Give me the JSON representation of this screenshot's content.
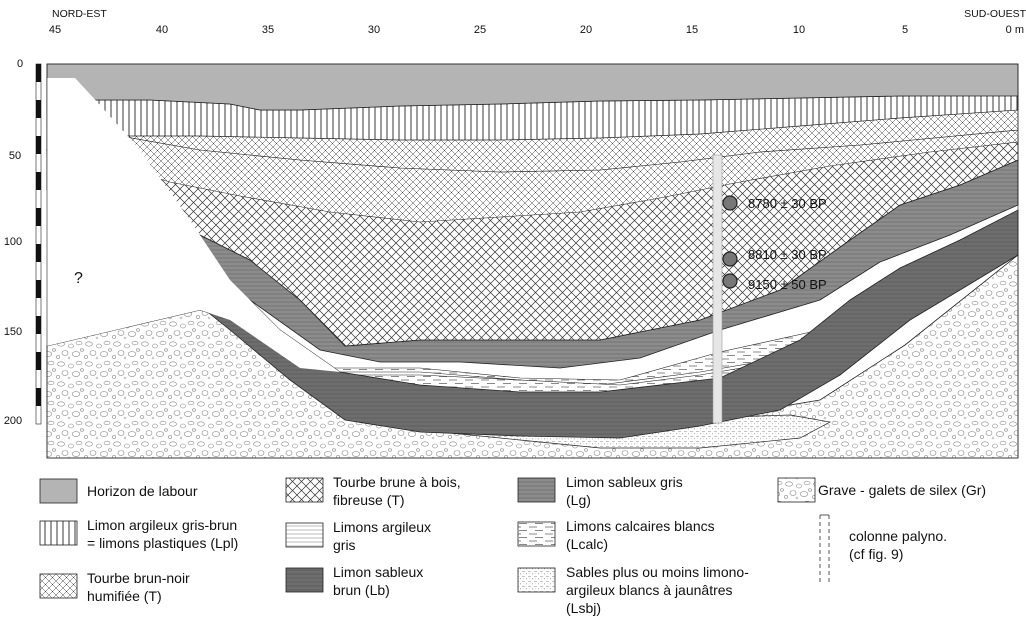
{
  "header": {
    "left_label": "NORD-EST",
    "right_label": "SUD-OUEST"
  },
  "x_axis": {
    "ticks": [
      "45",
      "40",
      "35",
      "30",
      "25",
      "20",
      "15",
      "10",
      "5",
      "0 m"
    ]
  },
  "y_axis": {
    "ticks": [
      "0",
      "50",
      "100",
      "150",
      "200"
    ]
  },
  "unknown_mark": "?",
  "dates": [
    {
      "label": "8780 ± 30 BP"
    },
    {
      "label": "8810 ± 30 BP"
    },
    {
      "label": "9150 ± 50 BP"
    }
  ],
  "legend": {
    "horizon": {
      "lines": [
        "Horizon de labour"
      ]
    },
    "lpl": {
      "lines": [
        "Limon argileux gris-brun",
        "= limons plastiques (Lpl)"
      ]
    },
    "tbn": {
      "lines": [
        "Tourbe brun-noir",
        "humifiée (T)"
      ]
    },
    "tbb": {
      "lines": [
        "Tourbe brune à bois,",
        "fibreuse (T)"
      ]
    },
    "lag": {
      "lines": [
        "Limons argileux",
        "gris"
      ]
    },
    "lb": {
      "lines": [
        "Limon sableux",
        "brun (Lb)"
      ]
    },
    "lg": {
      "lines": [
        "Limon sableux gris",
        "(Lg)"
      ]
    },
    "lcalc": {
      "lines": [
        "Limons calcaires blancs",
        "(Lcalc)"
      ]
    },
    "lsbj": {
      "lines": [
        "Sables plus ou moins limono-",
        "argileux blancs à jaunâtres",
        "(Lsbj)"
      ]
    },
    "gr": {
      "lines": [
        "Grave - galets de silex (Gr)"
      ]
    },
    "colonne": {
      "lines": [
        "colonne palyno.",
        "(cf fig. 9)"
      ]
    }
  },
  "colors": {
    "horizon": "#b4b4b4",
    "limon_sableux_brun": "#707070",
    "limon_sableux_gris": "#8a8a8a",
    "outline": "#222222"
  }
}
